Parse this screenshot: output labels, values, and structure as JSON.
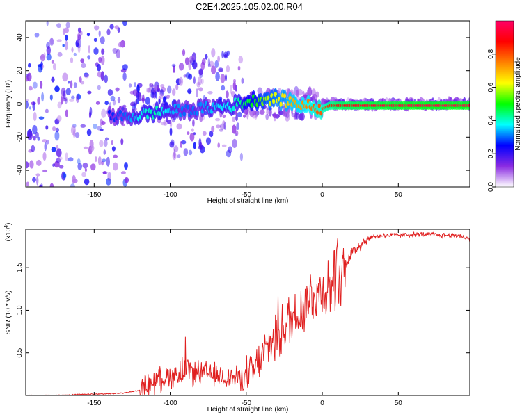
{
  "page_title": "C2E4.2025.105.02.00.R04",
  "chart_data": [
    {
      "type": "heatmap",
      "xlabel": "Height of straight line (km)",
      "ylabel": "Frequency (Hz)",
      "xlim": [
        -195,
        97
      ],
      "ylim": [
        -50,
        50
      ],
      "x_ticks": [
        -150,
        -100,
        -50,
        0,
        50
      ],
      "y_ticks": [
        -40,
        -20,
        0,
        20,
        40
      ],
      "colorbar": {
        "label": "Normalized spectral amplitude",
        "range": [
          0,
          1
        ],
        "ticks": [
          "0.0",
          "0.2",
          "0.4",
          "0.6",
          "0.8"
        ],
        "colors": [
          "#ffffff",
          "#8a2be2",
          "#0000ff",
          "#00ffff",
          "#00ff00",
          "#ffff00",
          "#ff8000",
          "#ff0000",
          "#ff0066"
        ]
      },
      "series": [
        {
          "x": [
            -195,
            -170,
            -150,
            -130,
            -120,
            -110,
            -100,
            -90,
            -80,
            -70,
            -60,
            -52,
            -45,
            -40,
            -35,
            -30,
            -25,
            -20,
            -15,
            -10,
            -5,
            0,
            5,
            10,
            20,
            30,
            40,
            50,
            60,
            70,
            80,
            90,
            97
          ],
          "frequency_center": [
            -3,
            -4,
            -6,
            -8,
            -7,
            -5,
            -4,
            -4,
            -3,
            -2,
            -1,
            1,
            2,
            3,
            3,
            3,
            2,
            1,
            0,
            -1,
            -2,
            -3,
            -1,
            -1,
            -1,
            -1,
            -1,
            -1,
            -1,
            -1,
            -1,
            -1,
            -1
          ],
          "peak_amplitude": [
            0.15,
            0.18,
            0.22,
            0.3,
            0.38,
            0.42,
            0.35,
            0.3,
            0.32,
            0.36,
            0.38,
            0.45,
            0.5,
            0.55,
            0.6,
            0.62,
            0.65,
            0.7,
            0.72,
            0.75,
            0.78,
            0.8,
            0.85,
            0.9,
            0.92,
            0.94,
            0.95,
            0.96,
            0.97,
            0.97,
            0.97,
            0.97,
            0.97
          ]
        }
      ]
    },
    {
      "type": "line",
      "xlabel": "Height of straight line (km)",
      "ylabel": "SNR (10 * v/v)",
      "y_multiplier": "(x10",
      "y_multiplier_exp": "4",
      "xlim": [
        -195,
        97
      ],
      "ylim": [
        0,
        1.95
      ],
      "x_ticks": [
        -150,
        -100,
        -50,
        0,
        50
      ],
      "y_ticks": [
        0.5,
        1.0,
        1.5
      ],
      "y_tick_labels": [
        "0.5",
        "1.0",
        "1.5"
      ],
      "color": "#e02020",
      "series": [
        {
          "x": [
            -195,
            -180,
            -160,
            -140,
            -130,
            -120,
            -115,
            -110,
            -105,
            -100,
            -95,
            -90,
            -85,
            -80,
            -75,
            -70,
            -65,
            -60,
            -55,
            -50,
            -45,
            -40,
            -35,
            -30,
            -25,
            -20,
            -15,
            -10,
            -5,
            0,
            5,
            10,
            15,
            20,
            25,
            30,
            35,
            40,
            50,
            60,
            70,
            80,
            90,
            97
          ],
          "values": [
            0.0,
            0.0,
            0.01,
            0.02,
            0.03,
            0.06,
            0.12,
            0.16,
            0.2,
            0.23,
            0.26,
            0.3,
            0.27,
            0.26,
            0.25,
            0.23,
            0.22,
            0.21,
            0.2,
            0.22,
            0.28,
            0.45,
            0.6,
            0.72,
            0.8,
            0.9,
            1.0,
            1.12,
            1.2,
            1.22,
            1.3,
            1.35,
            1.55,
            1.68,
            1.78,
            1.84,
            1.87,
            1.88,
            1.88,
            1.89,
            1.89,
            1.88,
            1.88,
            1.83
          ]
        }
      ]
    }
  ]
}
